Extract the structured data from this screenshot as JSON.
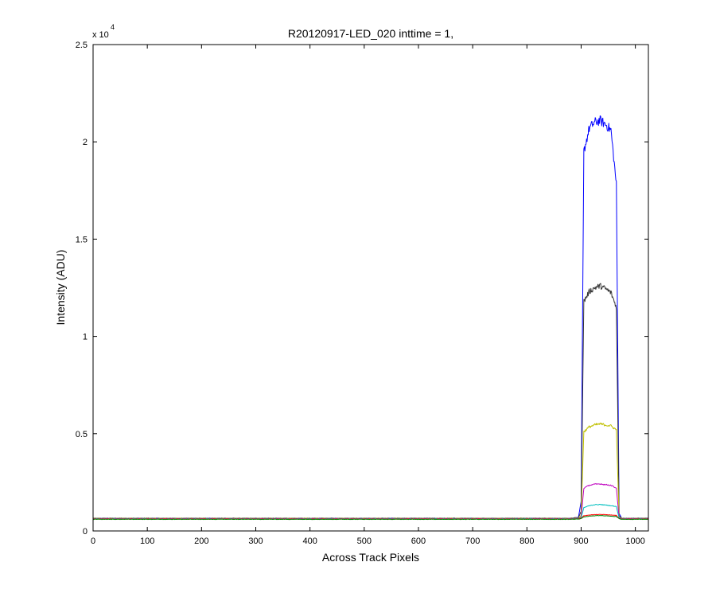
{
  "chart_data": {
    "type": "line",
    "title": "R20120917-LED_020 inttime = 1,",
    "xlabel": "Across Track Pixels",
    "ylabel": "Intensity (ADU)",
    "xlim": [
      0,
      1024
    ],
    "ylim": [
      0,
      25000
    ],
    "y_exponent_base": "x 10",
    "y_exponent_power": "4",
    "grid": false,
    "legend": "none",
    "x_ticks": [
      0,
      100,
      200,
      300,
      400,
      500,
      600,
      700,
      800,
      900,
      1000
    ],
    "x_tick_labels": [
      "0",
      "100",
      "200",
      "300",
      "400",
      "500",
      "600",
      "700",
      "800",
      "900",
      "1000"
    ],
    "y_ticks": [
      0,
      5000,
      10000,
      15000,
      20000,
      25000
    ],
    "y_tick_labels": [
      "0",
      "0.5",
      "1",
      "1.5",
      "2",
      "2.5"
    ],
    "series": [
      {
        "color": "#0000ff",
        "x": [
          0,
          880,
          895,
          900,
          905,
          915,
          925,
          935,
          945,
          955,
          965,
          970,
          975,
          1024
        ],
        "y": [
          650,
          650,
          700,
          1500,
          19500,
          20700,
          21000,
          21100,
          20900,
          20600,
          17800,
          900,
          650,
          650
        ]
      },
      {
        "color": "#333333",
        "x": [
          0,
          880,
          895,
          900,
          905,
          915,
          925,
          935,
          945,
          955,
          965,
          970,
          975,
          1024
        ],
        "y": [
          650,
          650,
          690,
          1000,
          11800,
          12300,
          12500,
          12600,
          12450,
          12250,
          11500,
          800,
          650,
          650
        ]
      },
      {
        "color": "#bfbf00",
        "x": [
          0,
          880,
          895,
          900,
          905,
          915,
          925,
          935,
          945,
          955,
          965,
          970,
          975,
          1024
        ],
        "y": [
          640,
          640,
          660,
          800,
          5100,
          5350,
          5450,
          5500,
          5450,
          5400,
          5200,
          700,
          640,
          640
        ]
      },
      {
        "color": "#bf00bf",
        "x": [
          0,
          880,
          895,
          900,
          905,
          915,
          925,
          935,
          945,
          955,
          965,
          970,
          975,
          1024
        ],
        "y": [
          630,
          630,
          650,
          700,
          2200,
          2350,
          2400,
          2420,
          2380,
          2350,
          2200,
          670,
          630,
          630
        ]
      },
      {
        "color": "#00bfbf",
        "x": [
          0,
          880,
          895,
          900,
          905,
          915,
          925,
          935,
          945,
          955,
          965,
          970,
          975,
          1024
        ],
        "y": [
          620,
          620,
          640,
          680,
          1200,
          1300,
          1350,
          1360,
          1330,
          1300,
          1250,
          660,
          620,
          620
        ]
      },
      {
        "color": "#ff0000",
        "x": [
          0,
          880,
          895,
          900,
          905,
          915,
          925,
          935,
          945,
          955,
          965,
          970,
          975,
          1024
        ],
        "y": [
          610,
          610,
          620,
          650,
          780,
          820,
          840,
          850,
          840,
          820,
          800,
          640,
          610,
          610
        ]
      },
      {
        "color": "#008000",
        "x": [
          0,
          880,
          895,
          900,
          905,
          915,
          925,
          935,
          945,
          955,
          965,
          970,
          975,
          1024
        ],
        "y": [
          600,
          600,
          610,
          640,
          720,
          760,
          780,
          790,
          780,
          760,
          740,
          630,
          600,
          600
        ]
      }
    ]
  }
}
